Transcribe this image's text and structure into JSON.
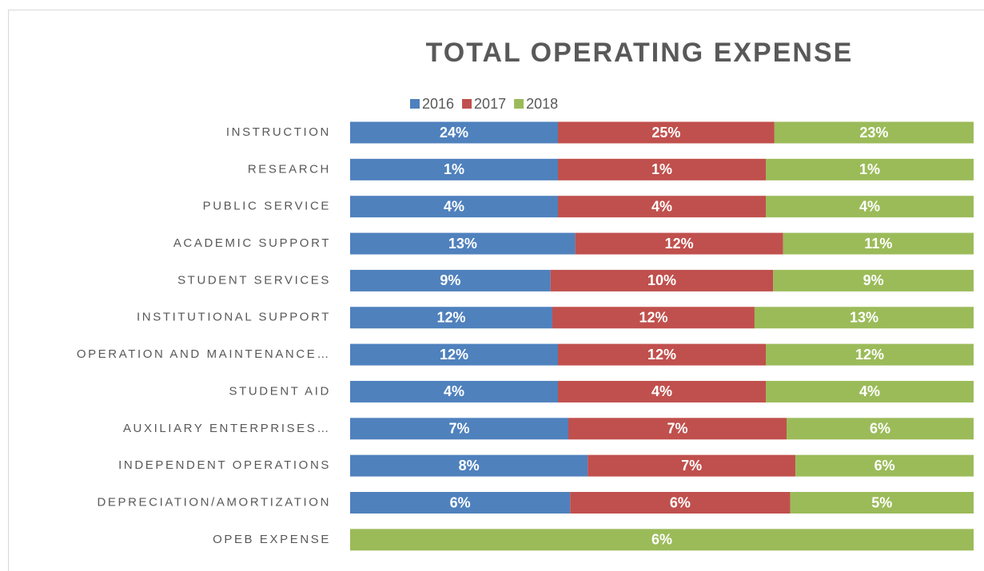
{
  "chart_data": {
    "type": "stacked-bar-100",
    "orientation": "horizontal",
    "title": "TOTAL OPERATING EXPENSE",
    "categories": [
      "INSTRUCTION",
      "RESEARCH",
      "PUBLIC SERVICE",
      "ACADEMIC SUPPORT",
      "STUDENT SERVICES",
      "INSTITUTIONAL SUPPORT",
      "OPERATION AND MAINTENANCE…",
      "STUDENT AID",
      "AUXILIARY ENTERPRISES…",
      "INDEPENDENT OPERATIONS",
      "DEPRECIATION/AMORTIZATION",
      "OPEB EXPENSE"
    ],
    "series": [
      {
        "name": "2016",
        "color": "#4f81bd",
        "values": [
          24,
          1,
          4,
          13,
          9,
          12,
          12,
          4,
          7,
          8,
          6,
          0
        ],
        "value_labels": [
          "24%",
          "1%",
          "4%",
          "13%",
          "9%",
          "12%",
          "12%",
          "4%",
          "7%",
          "8%",
          "6%",
          "0%"
        ]
      },
      {
        "name": "2017",
        "color": "#c0504d",
        "values": [
          25,
          1,
          4,
          12,
          10,
          12,
          12,
          4,
          7,
          7,
          6,
          0
        ],
        "value_labels": [
          "25%",
          "1%",
          "4%",
          "12%",
          "10%",
          "12%",
          "12%",
          "4%",
          "7%",
          "7%",
          "6%",
          "0%"
        ]
      },
      {
        "name": "2018",
        "color": "#9bbb59",
        "values": [
          23,
          1,
          4,
          11,
          9,
          13,
          12,
          4,
          6,
          6,
          5,
          6
        ],
        "value_labels": [
          "23%",
          "1%",
          "4%",
          "11%",
          "9%",
          "13%",
          "12%",
          "4%",
          "6%",
          "6%",
          "5%",
          "6%"
        ]
      }
    ],
    "legend": "top"
  }
}
